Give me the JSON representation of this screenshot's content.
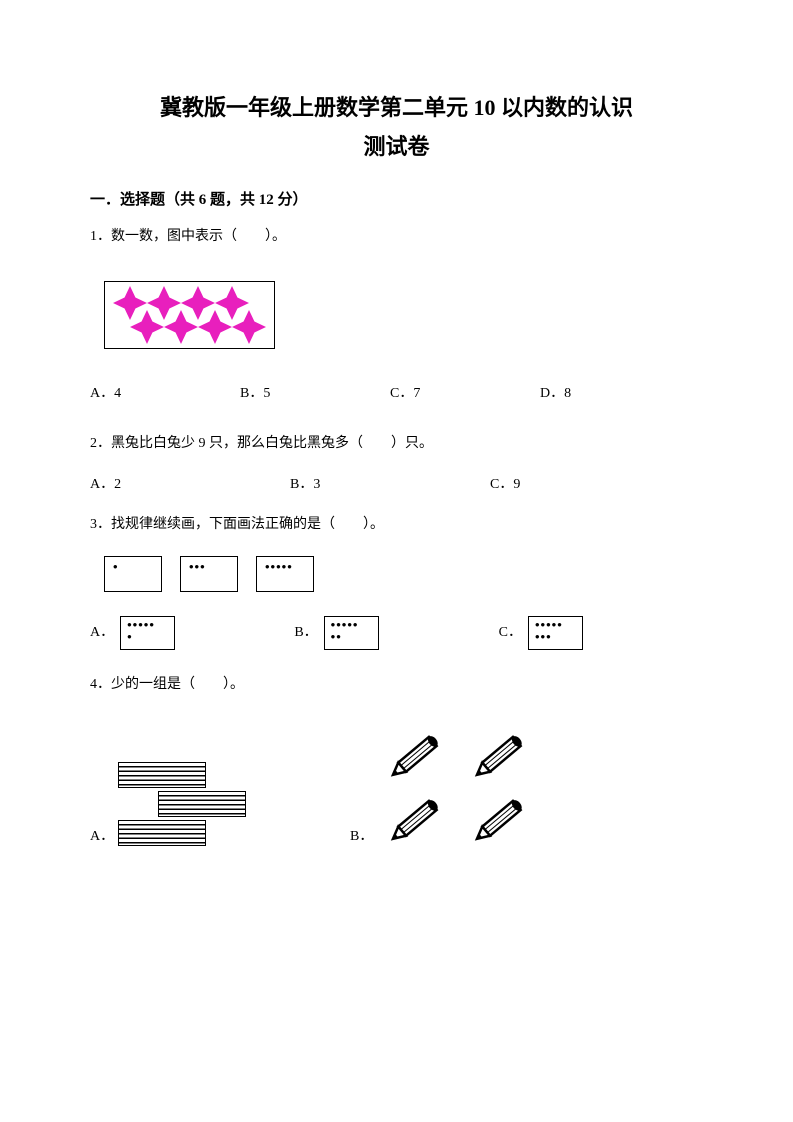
{
  "title_line1": "冀教版一年级上册数学第二单元 10 以内数的认识",
  "title_line2": "测试卷",
  "section1": {
    "header": "一．选择题（共 6 题，共 12 分）"
  },
  "q1": {
    "text": "1．数一数，图中表示（　　）。",
    "stars": {
      "top_count": 4,
      "bottom_count": 4,
      "color": "#e81fbd",
      "size": 34
    },
    "options": {
      "a": "A．4",
      "b": "B．5",
      "c": "C．7",
      "d": "D．8"
    }
  },
  "q2": {
    "text": "2．黑兔比白兔少 9 只，那么白兔比黑兔多（　　）只。",
    "options": {
      "a": "A．2",
      "b": "B．3",
      "c": "C．9"
    }
  },
  "q3": {
    "text": "3．找规律继续画，下面画法正确的是（　　）。",
    "pattern": [
      {
        "lines": [
          "•"
        ]
      },
      {
        "lines": [
          "•••"
        ]
      },
      {
        "lines": [
          "•••••"
        ]
      }
    ],
    "options": {
      "a": {
        "label": "A．",
        "lines": [
          "•••••",
          "•"
        ]
      },
      "b": {
        "label": "B．",
        "lines": [
          "•••••",
          "••"
        ]
      },
      "c": {
        "label": "C．",
        "lines": [
          "•••••",
          "•••"
        ]
      }
    }
  },
  "q4": {
    "text": "4．少的一组是（　　）。",
    "a_label": "A．",
    "b_label": "B．",
    "stripes_count": 3,
    "pencils_count": 4,
    "pencil_color": "#000000"
  },
  "colors": {
    "text": "#000000",
    "background": "#ffffff",
    "star": "#e81fbd"
  }
}
